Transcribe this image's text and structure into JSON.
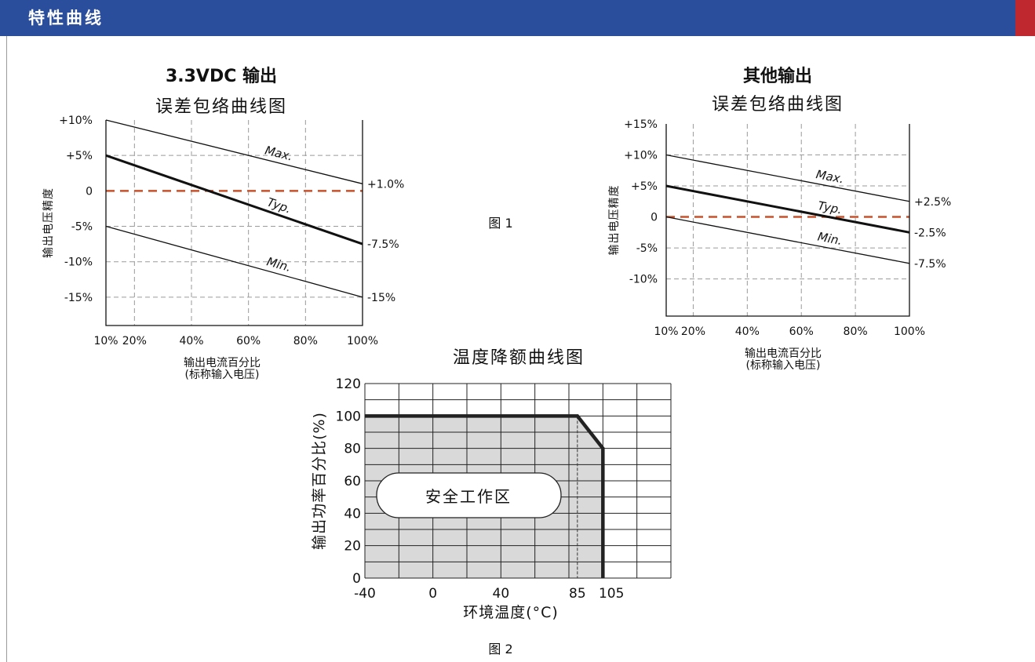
{
  "header": {
    "title": "特性曲线"
  },
  "figure_labels": {
    "fig1": "图 1",
    "fig2": "图 2"
  },
  "colors": {
    "header_bg": "#2a4e9b",
    "header_accent": "#c0282f",
    "dashed_zero": "#c8502a",
    "safe_area": "#d9d9d9"
  },
  "chart_data": [
    {
      "type": "line",
      "heading": "3.3VDC 输出",
      "title": "误差包络曲线图",
      "xlabel": "输出电流百分比",
      "xlabel_sub": "(标称输入电压)",
      "ylabel": "输出电压精度",
      "x_ticks": [
        10,
        20,
        40,
        60,
        80,
        100
      ],
      "x_tick_labels": [
        "10%",
        "20%",
        "40%",
        "60%",
        "80%",
        "100%"
      ],
      "y_ticks": [
        10,
        5,
        0,
        -5,
        -10,
        -15
      ],
      "y_tick_labels": [
        "+10%",
        "+5%",
        "0",
        "-5%",
        "-10%",
        "-15%"
      ],
      "xlim": [
        10,
        100
      ],
      "ylim": [
        -19,
        10
      ],
      "grid": true,
      "series": [
        {
          "name": "Max.",
          "x": [
            10,
            100
          ],
          "values": [
            10,
            1.0
          ],
          "end_label": "+1.0%"
        },
        {
          "name": "Typ.",
          "x": [
            10,
            100
          ],
          "values": [
            5,
            -7.5
          ],
          "end_label": "-7.5%"
        },
        {
          "name": "Min.",
          "x": [
            10,
            100
          ],
          "values": [
            -5,
            -15
          ],
          "end_label": "-15%"
        }
      ]
    },
    {
      "type": "line",
      "heading": "其他输出",
      "title": "误差包络曲线图",
      "xlabel": "输出电流百分比",
      "xlabel_sub": "(标称输入电压)",
      "ylabel": "输出电压精度",
      "x_ticks": [
        10,
        20,
        40,
        60,
        80,
        100
      ],
      "x_tick_labels": [
        "10%",
        "20%",
        "40%",
        "60%",
        "80%",
        "100%"
      ],
      "y_ticks": [
        15,
        10,
        5,
        0,
        -5,
        -10
      ],
      "y_tick_labels": [
        "+15%",
        "+10%",
        "+5%",
        "0",
        "-5%",
        "-10%"
      ],
      "xlim": [
        10,
        100
      ],
      "ylim": [
        -16,
        15
      ],
      "grid": true,
      "series": [
        {
          "name": "Max.",
          "x": [
            10,
            100
          ],
          "values": [
            10,
            2.5
          ],
          "end_label": "+2.5%"
        },
        {
          "name": "Typ.",
          "x": [
            10,
            100
          ],
          "values": [
            5,
            -2.5
          ],
          "end_label": "-2.5%"
        },
        {
          "name": "Min.",
          "x": [
            10,
            100
          ],
          "values": [
            0,
            -7.5
          ],
          "end_label": "-7.5%"
        }
      ]
    },
    {
      "type": "area",
      "title": "温度降额曲线图",
      "xlabel": "环境温度(°C)",
      "ylabel": "输出功率百分比(%)",
      "x_tick_values": [
        -40,
        0,
        40,
        85,
        105
      ],
      "x_tick_labels": [
        "-40",
        "0",
        "40",
        "85",
        "105"
      ],
      "y_tick_values": [
        0,
        20,
        40,
        60,
        80,
        100,
        120
      ],
      "y_tick_labels": [
        "0",
        "20",
        "40",
        "60",
        "80",
        "100",
        "120"
      ],
      "xlim": [
        -40,
        140
      ],
      "ylim": [
        0,
        120
      ],
      "grid": true,
      "series": [
        {
          "x": [
            -40,
            85,
            100,
            100
          ],
          "values": [
            100,
            100,
            80,
            0
          ]
        }
      ],
      "region_label": "安全工作区"
    }
  ]
}
